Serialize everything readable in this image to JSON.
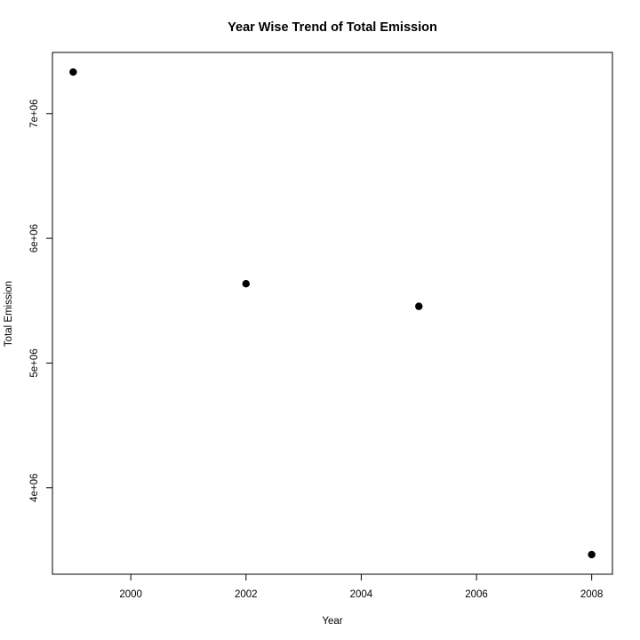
{
  "chart_data": {
    "type": "scatter",
    "title": "Year Wise Trend of Total Emission",
    "xlabel": "Year",
    "ylabel": "Total Emission",
    "x": [
      1999,
      2002,
      2005,
      2008
    ],
    "y": [
      7332967,
      5635780,
      5454703,
      3464206
    ],
    "xlim": [
      1998.64,
      2008.36
    ],
    "ylim": [
      3307055,
      7490118
    ],
    "x_ticks": [
      2000,
      2002,
      2004,
      2006,
      2008
    ],
    "x_tick_labels": [
      "2000",
      "2002",
      "2004",
      "2006",
      "2008"
    ],
    "y_ticks": [
      4000000,
      5000000,
      6000000,
      7000000
    ],
    "y_tick_labels": [
      "4e+06",
      "5e+06",
      "6e+06",
      "7e+06"
    ],
    "grid": false,
    "legend": "none",
    "point_color": "#000000"
  }
}
